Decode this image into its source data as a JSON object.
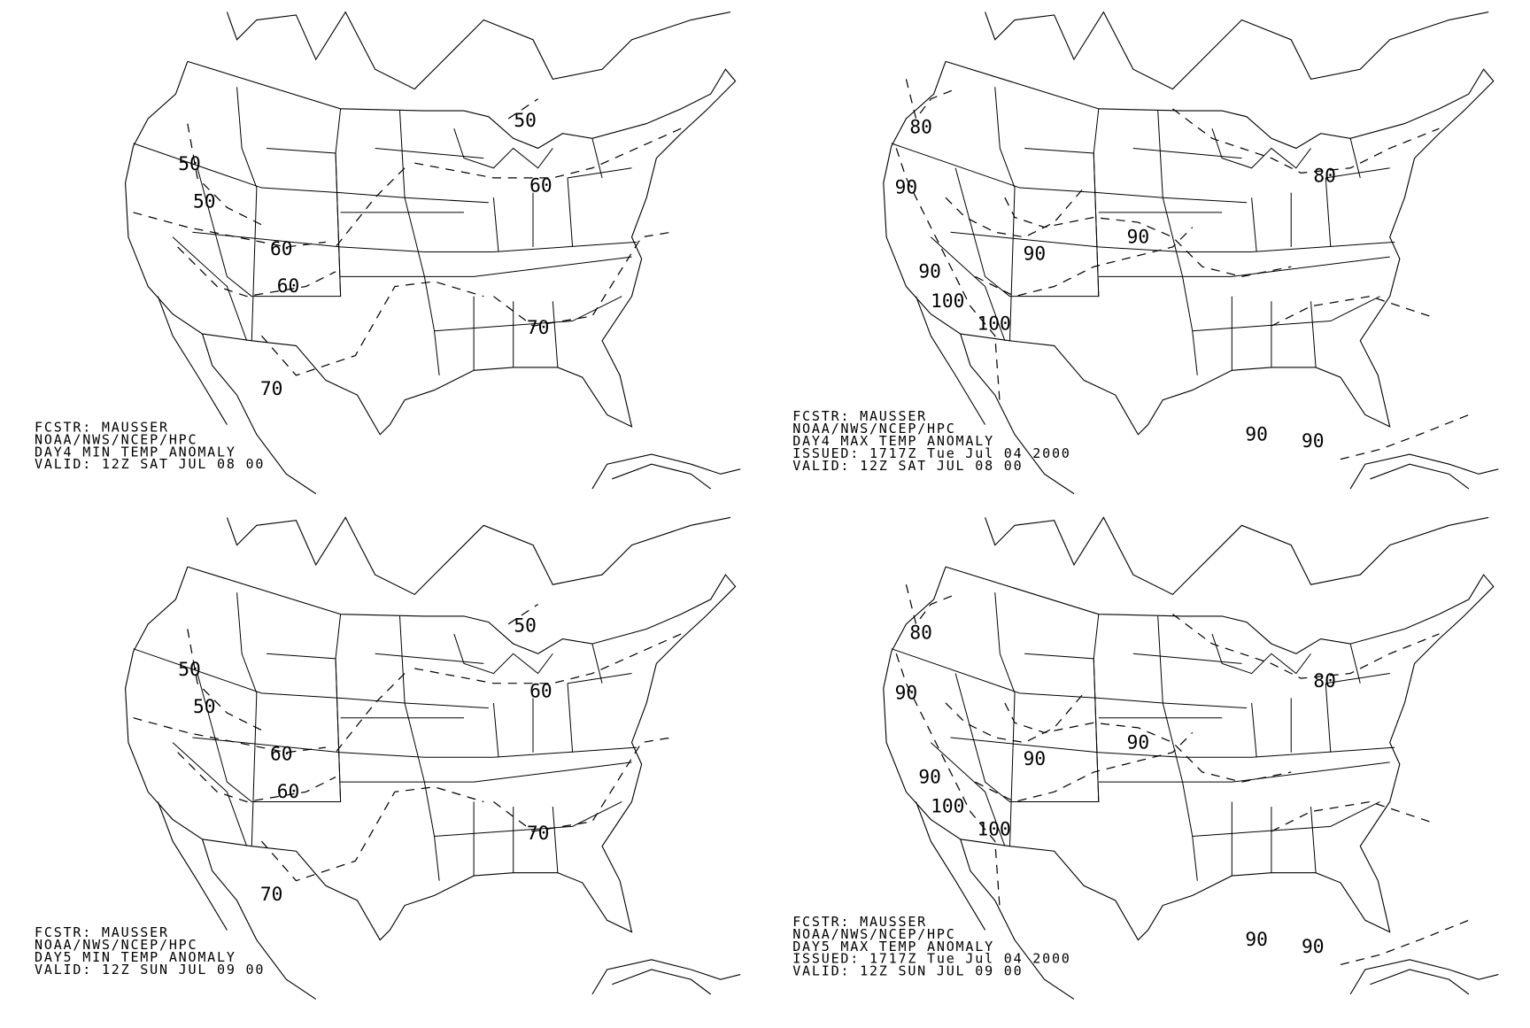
{
  "panels": [
    {
      "name": "day4-min",
      "info_lines": [
        "FCSTR: MAUSSER",
        "NOAA/NWS/NCEP/HPC",
        "DAY4 MIN TEMP ANOMALY",
        "VALID: 12Z SAT JUL 08 00"
      ],
      "contour_labels": [
        "50",
        "50",
        "50",
        "60",
        "60",
        "60",
        "70",
        "70"
      ]
    },
    {
      "name": "day4-max",
      "info_lines": [
        "FCSTR: MAUSSER",
        "NOAA/NWS/NCEP/HPC",
        "DAY4 MAX TEMP ANOMALY",
        "ISSUED: 1717Z Tue Jul 04 2000",
        "VALID: 12Z SAT JUL 08 00"
      ],
      "contour_labels": [
        "80",
        "90",
        "90",
        "90",
        "80",
        "90",
        "100",
        "100",
        "90",
        "90"
      ]
    },
    {
      "name": "day5-min",
      "info_lines": [
        "FCSTR: MAUSSER",
        "NOAA/NWS/NCEP/HPC",
        "DAY5 MIN TEMP ANOMALY",
        "VALID: 12Z SUN JUL 09 00"
      ],
      "contour_labels": [
        "50",
        "50",
        "50",
        "60",
        "60",
        "60",
        "70",
        "70"
      ]
    },
    {
      "name": "day5-max",
      "info_lines": [
        "FCSTR: MAUSSER",
        "NOAA/NWS/NCEP/HPC",
        "DAY5 MAX TEMP ANOMALY",
        "ISSUED: 1717Z Tue Jul 04 2000",
        "VALID: 12Z SUN JUL 09 00"
      ],
      "contour_labels": [
        "80",
        "90",
        "90",
        "90",
        "80",
        "90",
        "100",
        "100",
        "90",
        "90"
      ]
    }
  ]
}
